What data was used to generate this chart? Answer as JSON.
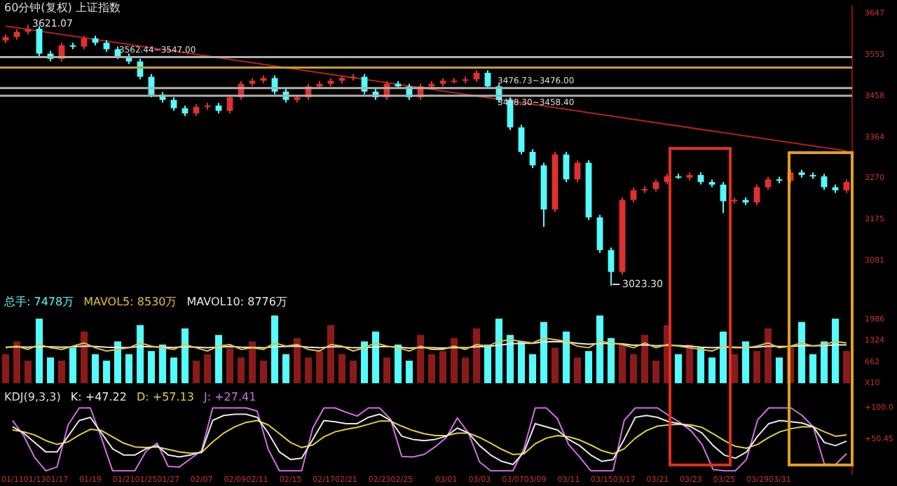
{
  "chart_data": [
    {
      "type": "candlestick",
      "title": "60分钟(复权)  上证指数",
      "categories": [
        null,
        null,
        null,
        null,
        null,
        null,
        null,
        null,
        null,
        null,
        null,
        null,
        null,
        null,
        null,
        null,
        null,
        null,
        null,
        null,
        null,
        null,
        null,
        null,
        null,
        null,
        null,
        null,
        null,
        null,
        null,
        null,
        null,
        null,
        null,
        null,
        null,
        null,
        null,
        null,
        null,
        null,
        null,
        null,
        null,
        null,
        null,
        null,
        null,
        null,
        null,
        null,
        null,
        null,
        null,
        null,
        null,
        null,
        null,
        null,
        null,
        null,
        null,
        null,
        null,
        null,
        null,
        null,
        null,
        null,
        null,
        null,
        null,
        null,
        null,
        null
      ],
      "ohlc": [
        [
          3585,
          3599,
          3579,
          3593
        ],
        [
          3593,
          3611,
          3587,
          3605
        ],
        [
          3605,
          3621.07,
          3599,
          3612
        ],
        [
          3612,
          3618,
          3549,
          3555
        ],
        [
          3555,
          3561,
          3537,
          3543
        ],
        [
          3543,
          3580,
          3537,
          3574
        ],
        [
          3574,
          3580,
          3565,
          3571
        ],
        [
          3571,
          3596,
          3565,
          3590
        ],
        [
          3590,
          3596,
          3574,
          3580
        ],
        [
          3580,
          3586,
          3559,
          3565
        ],
        [
          3565,
          3571,
          3543,
          3549
        ],
        [
          3549,
          3555,
          3531,
          3537
        ],
        [
          3537,
          3543,
          3496,
          3502
        ],
        [
          3502,
          3508,
          3455,
          3461
        ],
        [
          3461,
          3467,
          3443,
          3449
        ],
        [
          3449,
          3455,
          3424,
          3430
        ],
        [
          3430,
          3436,
          3412,
          3418
        ],
        [
          3418,
          3439,
          3412,
          3433
        ],
        [
          3433,
          3442,
          3427,
          3436
        ],
        [
          3436,
          3442,
          3418,
          3424
        ],
        [
          3424,
          3461,
          3418,
          3455
        ],
        [
          3455,
          3492,
          3449,
          3486
        ],
        [
          3486,
          3499,
          3480,
          3493
        ],
        [
          3493,
          3505,
          3487,
          3499
        ],
        [
          3499,
          3505,
          3462,
          3468
        ],
        [
          3468,
          3474,
          3443,
          3449
        ],
        [
          3449,
          3461,
          3443,
          3455
        ],
        [
          3455,
          3486,
          3449,
          3480
        ],
        [
          3480,
          3492,
          3474,
          3486
        ],
        [
          3486,
          3499,
          3480,
          3493
        ],
        [
          3493,
          3505,
          3487,
          3499
        ],
        [
          3499,
          3508,
          3493,
          3502
        ],
        [
          3502,
          3508,
          3462,
          3468
        ],
        [
          3468,
          3474,
          3449,
          3455
        ],
        [
          3455,
          3492,
          3449,
          3486
        ],
        [
          3486,
          3492,
          3474,
          3480
        ],
        [
          3480,
          3486,
          3449,
          3455
        ],
        [
          3455,
          3486,
          3449,
          3480
        ],
        [
          3480,
          3492,
          3474,
          3486
        ],
        [
          3486,
          3499,
          3480,
          3493
        ],
        [
          3493,
          3499,
          3487,
          3493
        ],
        [
          3493,
          3502,
          3487,
          3496
        ],
        [
          3496,
          3517,
          3490,
          3511
        ],
        [
          3511,
          3517,
          3474,
          3480
        ],
        [
          3480,
          3486,
          3443,
          3449
        ],
        [
          3449,
          3455,
          3380,
          3386
        ],
        [
          3386,
          3392,
          3324,
          3330
        ],
        [
          3330,
          3336,
          3293,
          3299
        ],
        [
          3299,
          3305,
          3158,
          3198
        ],
        [
          3198,
          3330,
          3192,
          3324
        ],
        [
          3324,
          3330,
          3261,
          3267
        ],
        [
          3267,
          3311,
          3261,
          3305
        ],
        [
          3305,
          3311,
          3174,
          3180
        ],
        [
          3180,
          3186,
          3099,
          3105
        ],
        [
          3105,
          3111,
          3023.3,
          3055
        ],
        [
          3055,
          3226,
          3049,
          3220
        ],
        [
          3220,
          3248,
          3214,
          3242
        ],
        [
          3242,
          3251,
          3236,
          3245
        ],
        [
          3245,
          3267,
          3239,
          3261
        ],
        [
          3261,
          3280,
          3255,
          3274
        ],
        [
          3274,
          3280,
          3268,
          3271
        ],
        [
          3271,
          3283,
          3265,
          3277
        ],
        [
          3277,
          3283,
          3255,
          3261
        ],
        [
          3261,
          3267,
          3249,
          3255
        ],
        [
          3255,
          3261,
          3190,
          3217
        ],
        [
          3217,
          3225,
          3211,
          3220
        ],
        [
          3220,
          3226,
          3208,
          3214
        ],
        [
          3214,
          3255,
          3208,
          3249
        ],
        [
          3249,
          3273,
          3243,
          3267
        ],
        [
          3267,
          3273,
          3258,
          3264
        ],
        [
          3264,
          3289,
          3258,
          3283
        ],
        [
          3283,
          3289,
          3271,
          3277
        ],
        [
          3277,
          3283,
          3268,
          3274
        ],
        [
          3274,
          3280,
          3243,
          3249
        ],
        [
          3249,
          3255,
          3236,
          3242
        ],
        [
          3242,
          3267,
          3236,
          3261
        ]
      ],
      "colors": [
        "#e03030",
        "#e03030",
        "#e03030",
        "#54fcfc",
        "#54fcfc",
        "#e03030",
        "#54fcfc",
        "#e03030",
        "#54fcfc",
        "#54fcfc",
        "#54fcfc",
        "#54fcfc",
        "#54fcfc",
        "#54fcfc",
        "#54fcfc",
        "#54fcfc",
        "#54fcfc",
        "#e03030",
        "#e03030",
        "#54fcfc",
        "#e03030",
        "#e03030",
        "#e03030",
        "#e03030",
        "#54fcfc",
        "#54fcfc",
        "#e03030",
        "#e03030",
        "#e03030",
        "#e03030",
        "#e03030",
        "#e03030",
        "#54fcfc",
        "#54fcfc",
        "#e03030",
        "#54fcfc",
        "#54fcfc",
        "#e03030",
        "#e03030",
        "#e03030",
        "#e03030",
        "#e03030",
        "#e03030",
        "#54fcfc",
        "#54fcfc",
        "#54fcfc",
        "#54fcfc",
        "#54fcfc",
        "#54fcfc",
        "#e03030",
        "#54fcfc",
        "#e03030",
        "#54fcfc",
        "#54fcfc",
        "#54fcfc",
        "#e03030",
        "#e03030",
        "#e03030",
        "#e03030",
        "#e03030",
        "#54fcfc",
        "#e03030",
        "#54fcfc",
        "#54fcfc",
        "#54fcfc",
        "#e03030",
        "#54fcfc",
        "#e03030",
        "#e03030",
        "#54fcfc",
        "#e03030",
        "#54fcfc",
        "#54fcfc",
        "#54fcfc",
        "#54fcfc",
        "#e03030"
      ],
      "series": [
        {
          "type": "line",
          "color": "#b02020",
          "values": [
            3618,
            null,
            null,
            null,
            null,
            null,
            null,
            null,
            null,
            null,
            null,
            null,
            null,
            null,
            null,
            null,
            null,
            null,
            null,
            null,
            null,
            null,
            null,
            null,
            null,
            null,
            null,
            null,
            null,
            null,
            null,
            null,
            null,
            null,
            null,
            null,
            null,
            null,
            null,
            null,
            null,
            null,
            null,
            null,
            null,
            null,
            null,
            null,
            null,
            null,
            null,
            null,
            null,
            null,
            null,
            null,
            null,
            null,
            null,
            null,
            null,
            null,
            null,
            null,
            null,
            null,
            null,
            null,
            null,
            null,
            null,
            null,
            null,
            null,
            null,
            3332
          ]
        }
      ],
      "ref_lines": [
        {
          "axis": "y",
          "value": 3547,
          "label": "3562.44~3547.00",
          "color": "#b0b0b0"
        },
        {
          "axis": "y",
          "value": 3523,
          "color": "#c8a030"
        },
        {
          "axis": "y",
          "value": 3476,
          "label": "3476.73~3476.00",
          "color": "#b0b0b0"
        },
        {
          "axis": "y",
          "value": 3458.4,
          "label": "3458.30~3458.40",
          "color": "#b0b0b0"
        }
      ],
      "annotations": [
        "3621.07",
        "3023.30"
      ],
      "ylim": [
        3018,
        3664
      ],
      "yticks": [
        3081,
        3175,
        3270,
        3364,
        3458,
        3553,
        3647
      ],
      "tick_labels": "y",
      "marker": "none"
    },
    {
      "type": "bar",
      "legend": "top left",
      "categories": [
        null,
        null,
        null,
        null,
        null,
        null,
        null,
        null,
        null,
        null,
        null,
        null,
        null,
        null,
        null,
        null,
        null,
        null,
        null,
        null,
        null,
        null,
        null,
        null,
        null,
        null,
        null,
        null,
        null,
        null,
        null,
        null,
        null,
        null,
        null,
        null,
        null,
        null,
        null,
        null,
        null,
        null,
        null,
        null,
        null,
        null,
        null,
        null,
        null,
        null,
        null,
        null,
        null,
        null,
        null,
        null,
        null,
        null,
        null,
        null,
        null,
        null,
        null,
        null,
        null,
        null,
        null,
        null,
        null,
        null,
        null,
        null,
        null,
        null,
        null,
        null
      ],
      "series": [
        {
          "type": "bar",
          "name": "总手: 7478万",
          "color": "#54fcfc",
          "colors": [
            "#8b1a1a",
            "#8b1a1a",
            "#8b1a1a",
            "#54fcfc",
            "#54fcfc",
            "#8b1a1a",
            "#54fcfc",
            "#8b1a1a",
            "#54fcfc",
            "#54fcfc",
            "#54fcfc",
            "#54fcfc",
            "#54fcfc",
            "#54fcfc",
            "#54fcfc",
            "#54fcfc",
            "#54fcfc",
            "#8b1a1a",
            "#8b1a1a",
            "#54fcfc",
            "#8b1a1a",
            "#8b1a1a",
            "#8b1a1a",
            "#8b1a1a",
            "#54fcfc",
            "#54fcfc",
            "#8b1a1a",
            "#8b1a1a",
            "#8b1a1a",
            "#8b1a1a",
            "#8b1a1a",
            "#8b1a1a",
            "#54fcfc",
            "#54fcfc",
            "#8b1a1a",
            "#54fcfc",
            "#54fcfc",
            "#8b1a1a",
            "#8b1a1a",
            "#8b1a1a",
            "#8b1a1a",
            "#8b1a1a",
            "#8b1a1a",
            "#54fcfc",
            "#54fcfc",
            "#54fcfc",
            "#54fcfc",
            "#54fcfc",
            "#54fcfc",
            "#8b1a1a",
            "#54fcfc",
            "#8b1a1a",
            "#54fcfc",
            "#54fcfc",
            "#54fcfc",
            "#8b1a1a",
            "#8b1a1a",
            "#8b1a1a",
            "#8b1a1a",
            "#8b1a1a",
            "#54fcfc",
            "#8b1a1a",
            "#54fcfc",
            "#54fcfc",
            "#54fcfc",
            "#8b1a1a",
            "#54fcfc",
            "#8b1a1a",
            "#8b1a1a",
            "#54fcfc",
            "#8b1a1a",
            "#54fcfc",
            "#54fcfc",
            "#54fcfc",
            "#54fcfc",
            "#8b1a1a"
          ],
          "values": [
            900,
            1300,
            700,
            2000,
            800,
            700,
            1100,
            1600,
            900,
            700,
            1300,
            900,
            1800,
            1000,
            1200,
            800,
            1700,
            700,
            900,
            1500,
            1100,
            800,
            1300,
            700,
            2100,
            900,
            1400,
            800,
            1000,
            1800,
            900,
            700,
            1300,
            1600,
            800,
            1200,
            700,
            1500,
            900,
            1000,
            1400,
            800,
            1700,
            1200,
            2000,
            1500,
            1300,
            900,
            1900,
            1100,
            1600,
            800,
            1000,
            2100,
            1400,
            1200,
            900,
            1500,
            700,
            1800,
            900,
            1200,
            1100,
            800,
            1600,
            900,
            1300,
            1000,
            1700,
            800,
            1100,
            1900,
            900,
            1300,
            2000,
            1000
          ]
        },
        {
          "type": "line",
          "name": "MAVOL5: 8530万",
          "color": "#e0c040",
          "values": [
            1100,
            1150,
            1050,
            1200,
            1100,
            1050,
            1150,
            1250,
            1100,
            1000,
            1050,
            1100,
            1250,
            1150,
            1100,
            1050,
            1200,
            1100,
            1000,
            1150,
            1200,
            1050,
            1100,
            1050,
            1250,
            1150,
            1200,
            1050,
            1000,
            1200,
            1150,
            1000,
            1100,
            1250,
            1150,
            1100,
            1000,
            1150,
            1050,
            1050,
            1150,
            1050,
            1200,
            1150,
            1300,
            1350,
            1300,
            1250,
            1400,
            1350,
            1300,
            1150,
            1100,
            1300,
            1250,
            1200,
            1100,
            1250,
            1100,
            1200,
            1150,
            1100,
            1050,
            1000,
            1150,
            1100,
            1100,
            1150,
            1250,
            1100,
            1150,
            1250,
            1150,
            1200,
            1300,
            1250
          ]
        },
        {
          "type": "line",
          "name": "MAVOL10: 8776万",
          "color": "#e8e8e8",
          "values": [
            1120,
            1130,
            1120,
            1140,
            1130,
            1120,
            1130,
            1150,
            1140,
            1120,
            1110,
            1110,
            1140,
            1130,
            1120,
            1110,
            1130,
            1120,
            1100,
            1120,
            1140,
            1120,
            1110,
            1100,
            1130,
            1140,
            1150,
            1120,
            1100,
            1130,
            1130,
            1100,
            1100,
            1130,
            1140,
            1120,
            1090,
            1110,
            1100,
            1090,
            1110,
            1100,
            1130,
            1140,
            1180,
            1220,
            1240,
            1240,
            1280,
            1290,
            1280,
            1240,
            1210,
            1230,
            1230,
            1220,
            1180,
            1190,
            1160,
            1180,
            1170,
            1150,
            1120,
            1100,
            1120,
            1120,
            1110,
            1120,
            1150,
            1140,
            1140,
            1160,
            1160,
            1170,
            1190,
            1190
          ]
        }
      ],
      "ylim": [
        0,
        2240
      ],
      "yticks": [
        {
          "value": 0,
          "label": "X10"
        },
        662,
        1324,
        1986
      ],
      "tick_labels": "y",
      "marker": "none"
    },
    {
      "type": "line",
      "title": "KDJ(9,3,3)",
      "legend": "top left",
      "categories": [
        "01/11",
        null,
        "01/13",
        null,
        "01/17",
        null,
        null,
        "01/19",
        null,
        null,
        "01/21",
        null,
        "01/25",
        null,
        "01/27",
        null,
        null,
        "02/07",
        null,
        null,
        "02/09",
        null,
        "02/11",
        null,
        null,
        "02/15",
        null,
        null,
        "02/17",
        null,
        "02/21",
        null,
        null,
        "02/23",
        null,
        "02/25",
        null,
        null,
        null,
        "03/01",
        null,
        null,
        "03/03",
        null,
        null,
        "03/07",
        null,
        "03/09",
        null,
        null,
        "03/11",
        null,
        null,
        "03/15",
        null,
        "03/17",
        null,
        null,
        "03/21",
        null,
        null,
        "03/23",
        null,
        null,
        "03/25",
        null,
        null,
        "03/29",
        null,
        "03/31",
        null,
        null,
        null,
        null,
        null,
        null
      ],
      "series": [
        {
          "name": "K: +47.22",
          "color": "#e8e8e8",
          "values": [
            70,
            60,
            45,
            30,
            30,
            55,
            80,
            85,
            60,
            35,
            25,
            25,
            35,
            40,
            25,
            22,
            25,
            30,
            80,
            88,
            90,
            90,
            85,
            60,
            30,
            18,
            20,
            50,
            80,
            78,
            75,
            75,
            85,
            90,
            80,
            55,
            50,
            48,
            50,
            55,
            68,
            60,
            40,
            25,
            15,
            10,
            30,
            75,
            70,
            65,
            50,
            40,
            25,
            15,
            18,
            50,
            85,
            88,
            85,
            78,
            75,
            70,
            60,
            40,
            25,
            20,
            30,
            55,
            75,
            80,
            78,
            76,
            70,
            45,
            40,
            47.22
          ]
        },
        {
          "name": "D: +57.13",
          "color": "#e0d040",
          "values": [
            65,
            62,
            57,
            48,
            42,
            46,
            57,
            66,
            64,
            54,
            44,
            38,
            37,
            38,
            34,
            30,
            28,
            29,
            46,
            60,
            70,
            77,
            80,
            73,
            59,
            45,
            37,
            41,
            54,
            62,
            66,
            69,
            74,
            79,
            79,
            71,
            64,
            59,
            56,
            56,
            60,
            60,
            53,
            44,
            34,
            26,
            27,
            43,
            52,
            56,
            54,
            49,
            41,
            32,
            27,
            35,
            52,
            64,
            71,
            73,
            74,
            73,
            69,
            59,
            48,
            39,
            36,
            42,
            53,
            62,
            67,
            70,
            70,
            62,
            55,
            57.13
          ]
        },
        {
          "name": "J: +27.41",
          "color": "#d070e0",
          "values": [
            80,
            56,
            21,
            0,
            6,
            73,
            100,
            100,
            52,
            0,
            0,
            0,
            31,
            44,
            7,
            6,
            19,
            32,
            100,
            100,
            100,
            100,
            95,
            34,
            0,
            0,
            0,
            68,
            100,
            100,
            93,
            87,
            100,
            100,
            82,
            23,
            22,
            26,
            38,
            53,
            84,
            60,
            14,
            0,
            0,
            0,
            36,
            100,
            100,
            83,
            42,
            22,
            0,
            0,
            0,
            80,
            100,
            100,
            100,
            88,
            77,
            64,
            42,
            2,
            0,
            0,
            18,
            81,
            100,
            100,
            100,
            88,
            70,
            11,
            10,
            27.41
          ]
        }
      ],
      "ylim": [
        -5,
        105
      ],
      "yticks": [
        {
          "value": 50.45,
          "label": "+50.45"
        },
        {
          "value": 100,
          "label": "+100.0"
        }
      ],
      "marker": "none"
    }
  ]
}
